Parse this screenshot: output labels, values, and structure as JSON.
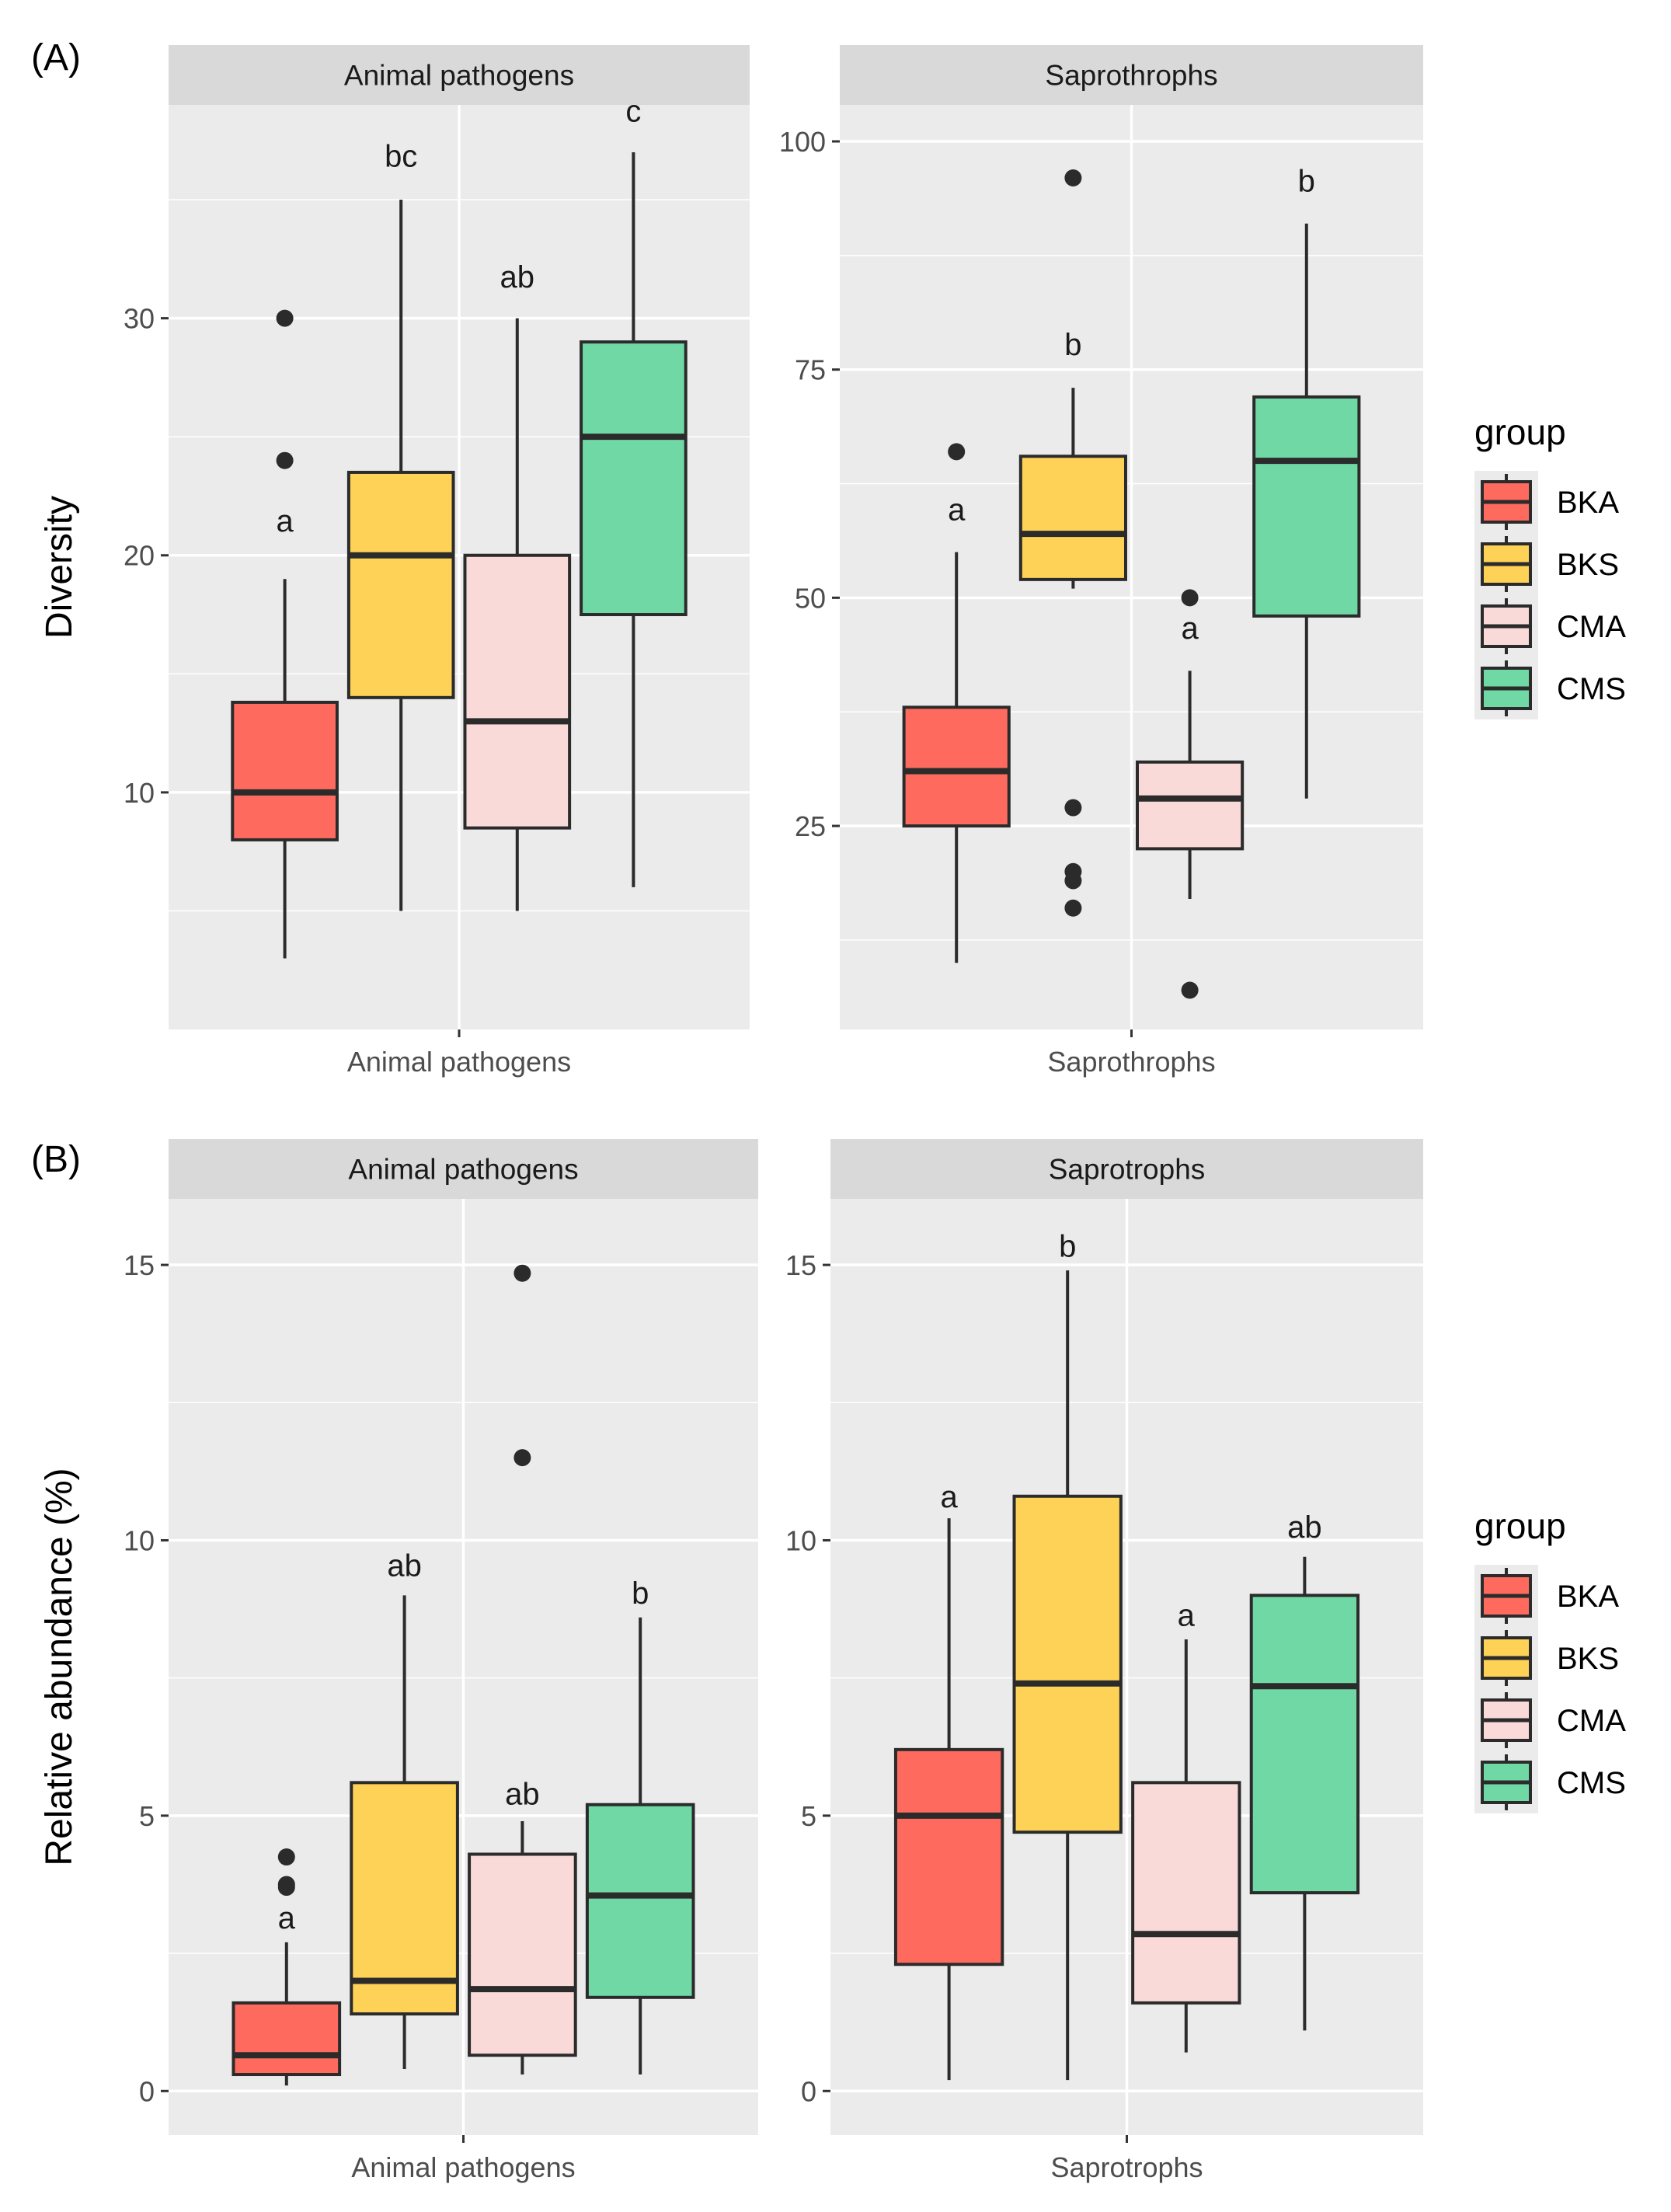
{
  "figure": {
    "colors": {
      "BKA": "#fe6b5e",
      "BKS": "#fed257",
      "CMA": "#fad9d9",
      "CMS": "#6fd8a5",
      "panel_bg": "#ebebeb",
      "strip_bg": "#d9d9d9",
      "grid": "#ffffff",
      "line": "#2b2b2b"
    },
    "legend": {
      "title": "group",
      "items": [
        {
          "key": "BKA",
          "label": "BKA"
        },
        {
          "key": "BKS",
          "label": "BKS"
        },
        {
          "key": "CMA",
          "label": "CMA"
        },
        {
          "key": "CMS",
          "label": "CMS"
        }
      ]
    }
  },
  "chart_data": [
    {
      "type": "boxplot",
      "id": "A-animal",
      "panel_label": "(A)",
      "facet": "Animal pathogens",
      "xlabel": "Animal pathogens",
      "ylabel": "Diversity",
      "ylim": [
        0,
        39
      ],
      "major_ticks": [
        10,
        20,
        30
      ],
      "minor_ticks": [
        5,
        15,
        25,
        35
      ],
      "groups": [
        {
          "name": "BKA",
          "whisker_low": 3,
          "q1": 8,
          "median": 10,
          "q3": 13.8,
          "whisker_high": 19,
          "outliers": [
            24,
            30
          ],
          "letter": "a",
          "letter_y": 21
        },
        {
          "name": "BKS",
          "whisker_low": 5,
          "q1": 14,
          "median": 20,
          "q3": 23.5,
          "whisker_high": 35,
          "outliers": [],
          "letter": "bc",
          "letter_y": 36.4
        },
        {
          "name": "CMA",
          "whisker_low": 5,
          "q1": 8.5,
          "median": 13,
          "q3": 20,
          "whisker_high": 30,
          "outliers": [],
          "letter": "ab",
          "letter_y": 31.3
        },
        {
          "name": "CMS",
          "whisker_low": 6,
          "q1": 17.5,
          "median": 25,
          "q3": 29,
          "whisker_high": 37,
          "outliers": [],
          "letter": "c",
          "letter_y": 38.3
        }
      ]
    },
    {
      "type": "boxplot",
      "id": "A-sapro",
      "panel_label": "",
      "facet": "Saprothrophs",
      "xlabel": "Saprothrophs",
      "ylabel": "",
      "ylim": [
        2.7,
        104
      ],
      "major_ticks": [
        25,
        50,
        75,
        100
      ],
      "minor_ticks": [
        12.5,
        37.5,
        62.5,
        87.5
      ],
      "groups": [
        {
          "name": "BKA",
          "whisker_low": 10,
          "q1": 25,
          "median": 31,
          "q3": 38,
          "whisker_high": 55,
          "outliers": [
            66
          ],
          "letter": "a",
          "letter_y": 58.5
        },
        {
          "name": "BKS",
          "whisker_low": 51,
          "q1": 52,
          "median": 57,
          "q3": 65.5,
          "whisker_high": 73,
          "outliers": [
            96,
            27,
            20,
            19,
            16
          ],
          "letter": "b",
          "letter_y": 76.6
        },
        {
          "name": "CMA",
          "whisker_low": 17,
          "q1": 22.5,
          "median": 28,
          "q3": 32,
          "whisker_high": 42,
          "outliers": [
            50,
            7
          ],
          "letter": "a",
          "letter_y": 45.5
        },
        {
          "name": "CMS",
          "whisker_low": 28,
          "q1": 48,
          "median": 65,
          "q3": 72,
          "whisker_high": 91,
          "outliers": [],
          "letter": "b",
          "letter_y": 94.5
        }
      ]
    },
    {
      "type": "boxplot",
      "id": "B-animal",
      "panel_label": "(B)",
      "facet": "Animal pathogens",
      "xlabel": "Animal pathogens",
      "ylabel": "Relative abundance (%)",
      "ylim": [
        -0.8,
        16.2
      ],
      "major_ticks": [
        0,
        5,
        10,
        15
      ],
      "minor_ticks": [
        2.5,
        7.5,
        12.5
      ],
      "groups": [
        {
          "name": "BKA",
          "whisker_low": 0.1,
          "q1": 0.3,
          "median": 0.65,
          "q3": 1.6,
          "whisker_high": 2.7,
          "outliers": [
            4.25,
            3.75,
            3.7
          ],
          "letter": "a",
          "letter_y": 2.95
        },
        {
          "name": "BKS",
          "whisker_low": 0.4,
          "q1": 1.4,
          "median": 2.0,
          "q3": 5.6,
          "whisker_high": 9.0,
          "outliers": [],
          "letter": "ab",
          "letter_y": 9.35
        },
        {
          "name": "CMA",
          "whisker_low": 0.3,
          "q1": 0.65,
          "median": 1.85,
          "q3": 4.3,
          "whisker_high": 4.9,
          "outliers": [
            14.85,
            11.5
          ],
          "letter": "ab",
          "letter_y": 5.2
        },
        {
          "name": "CMS",
          "whisker_low": 0.3,
          "q1": 1.7,
          "median": 3.55,
          "q3": 5.2,
          "whisker_high": 8.6,
          "outliers": [],
          "letter": "b",
          "letter_y": 8.85
        }
      ]
    },
    {
      "type": "boxplot",
      "id": "B-sapro",
      "panel_label": "",
      "facet": "Saprotrophs",
      "xlabel": "Saprotrophs",
      "ylabel": "",
      "ylim": [
        -0.8,
        16.2
      ],
      "major_ticks": [
        0,
        5,
        10,
        15
      ],
      "minor_ticks": [
        2.5,
        7.5,
        12.5
      ],
      "groups": [
        {
          "name": "BKA",
          "whisker_low": 0.2,
          "q1": 2.3,
          "median": 5.0,
          "q3": 6.2,
          "whisker_high": 10.4,
          "outliers": [],
          "letter": "a",
          "letter_y": 10.6
        },
        {
          "name": "BKS",
          "whisker_low": 0.2,
          "q1": 4.7,
          "median": 7.4,
          "q3": 10.8,
          "whisker_high": 14.9,
          "outliers": [],
          "letter": "b",
          "letter_y": 15.15
        },
        {
          "name": "CMA",
          "whisker_low": 0.7,
          "q1": 1.6,
          "median": 2.85,
          "q3": 5.6,
          "whisker_high": 8.2,
          "outliers": [],
          "letter": "a",
          "letter_y": 8.45
        },
        {
          "name": "CMS",
          "whisker_low": 1.1,
          "q1": 3.6,
          "median": 7.35,
          "q3": 9.0,
          "whisker_high": 9.7,
          "outliers": [],
          "letter": "ab",
          "letter_y": 10.05
        }
      ]
    }
  ]
}
